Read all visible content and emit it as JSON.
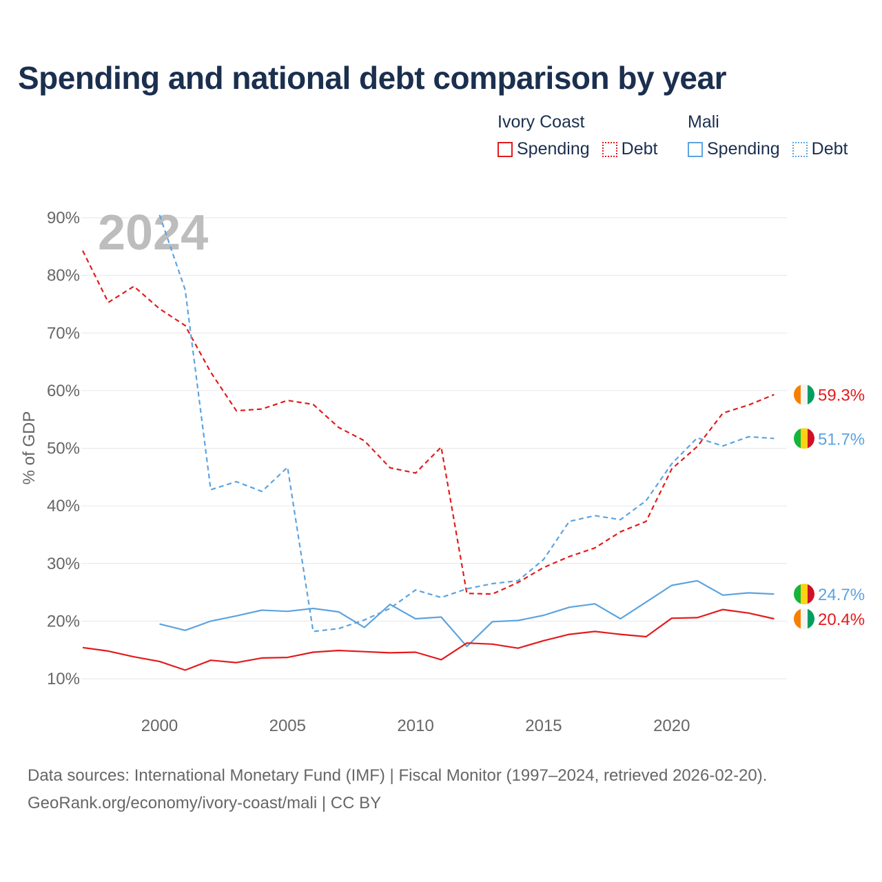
{
  "title": "Spending and national debt comparison by year",
  "legend": {
    "groups": [
      {
        "country": "Ivory Coast",
        "color": "#e31a1c",
        "items": [
          {
            "label": "Spending",
            "style": "solid"
          },
          {
            "label": "Debt",
            "style": "dotted"
          }
        ]
      },
      {
        "country": "Mali",
        "color": "#5ba3e0",
        "items": [
          {
            "label": "Spending",
            "style": "solid"
          },
          {
            "label": "Debt",
            "style": "dotted"
          }
        ]
      }
    ]
  },
  "chart_data": {
    "type": "line",
    "year_watermark": "2024",
    "ylabel": "% of GDP",
    "xlabel": "",
    "xlim": [
      1997,
      2024.5
    ],
    "ylim": [
      10,
      90
    ],
    "grid": true,
    "x_ticks": [
      2000,
      2005,
      2010,
      2015,
      2020
    ],
    "y_ticks": [
      10,
      20,
      30,
      40,
      50,
      60,
      70,
      80,
      90
    ],
    "y_tick_labels": [
      "10%",
      "20%",
      "30%",
      "40%",
      "50%",
      "60%",
      "70%",
      "80%",
      "90%"
    ],
    "series": [
      {
        "name": "Ivory Coast Debt",
        "color": "#e31a1c",
        "dash": "dashed",
        "x": [
          1997,
          1998,
          1999,
          2000,
          2001,
          2002,
          2003,
          2004,
          2005,
          2006,
          2007,
          2008,
          2009,
          2010,
          2011,
          2012,
          2013,
          2014,
          2015,
          2016,
          2017,
          2018,
          2019,
          2020,
          2021,
          2022,
          2023,
          2024
        ],
        "values": [
          84.3,
          75.3,
          78.1,
          74.2,
          71.3,
          63.2,
          56.5,
          56.8,
          58.3,
          57.6,
          53.6,
          51.3,
          46.6,
          45.7,
          50.2,
          24.8,
          24.7,
          26.7,
          29.3,
          31.2,
          32.7,
          35.5,
          37.3,
          46.4,
          50.3,
          56.1,
          57.5,
          59.3
        ],
        "end_label": "59.3%",
        "flag": "ivory-coast"
      },
      {
        "name": "Mali Debt",
        "color": "#5ba3e0",
        "dash": "dashed",
        "x": [
          2000,
          2001,
          2002,
          2003,
          2004,
          2005,
          2006,
          2007,
          2008,
          2009,
          2010,
          2011,
          2012,
          2013,
          2014,
          2015,
          2016,
          2017,
          2018,
          2019,
          2020,
          2021,
          2022,
          2023,
          2024
        ],
        "values": [
          90.5,
          77.5,
          42.8,
          44.2,
          42.5,
          46.7,
          18.2,
          18.7,
          20.2,
          22.2,
          25.4,
          24.1,
          25.6,
          26.5,
          27.0,
          30.7,
          37.3,
          38.3,
          37.6,
          40.9,
          47.3,
          51.8,
          50.4,
          52.0,
          51.7
        ],
        "end_label": "51.7%",
        "flag": "mali"
      },
      {
        "name": "Mali Spending",
        "color": "#5ba3e0",
        "dash": "solid",
        "x": [
          2000,
          2001,
          2002,
          2003,
          2004,
          2005,
          2006,
          2007,
          2008,
          2009,
          2010,
          2011,
          2012,
          2013,
          2014,
          2015,
          2016,
          2017,
          2018,
          2019,
          2020,
          2021,
          2022,
          2023,
          2024
        ],
        "values": [
          19.5,
          18.4,
          20.0,
          20.9,
          21.9,
          21.7,
          22.2,
          21.6,
          18.9,
          22.9,
          20.4,
          20.7,
          15.6,
          19.9,
          20.1,
          21.0,
          22.4,
          23.0,
          20.4,
          23.3,
          26.2,
          27.0,
          24.5,
          24.9,
          24.7
        ],
        "end_label": "24.7%",
        "flag": "mali"
      },
      {
        "name": "Ivory Coast Spending",
        "color": "#e31a1c",
        "dash": "solid",
        "x": [
          1997,
          1998,
          1999,
          2000,
          2001,
          2002,
          2003,
          2004,
          2005,
          2006,
          2007,
          2008,
          2009,
          2010,
          2011,
          2012,
          2013,
          2014,
          2015,
          2016,
          2017,
          2018,
          2019,
          2020,
          2021,
          2022,
          2023,
          2024
        ],
        "values": [
          15.4,
          14.8,
          13.8,
          13.0,
          11.5,
          13.2,
          12.8,
          13.6,
          13.7,
          14.6,
          14.9,
          14.7,
          14.5,
          14.6,
          13.3,
          16.2,
          16.0,
          15.3,
          16.6,
          17.7,
          18.2,
          17.7,
          17.3,
          20.5,
          20.6,
          22.0,
          21.4,
          20.4
        ],
        "end_label": "20.4%",
        "flag": "ivory-coast"
      }
    ]
  },
  "footer": {
    "line1": "Data sources: International Monetary Fund (IMF) | Fiscal Monitor (1997–2024, retrieved 2026-02-20).",
    "line2": "GeoRank.org/economy/ivory-coast/mali | CC BY"
  }
}
